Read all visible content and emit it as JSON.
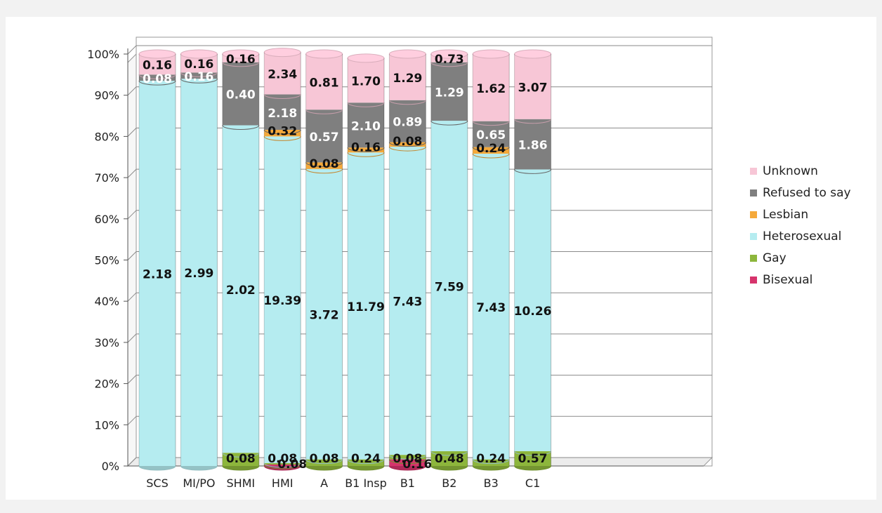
{
  "chart_data": {
    "type": "bar",
    "stacked": true,
    "title": "",
    "xlabel": "",
    "ylabel": "",
    "ylim": [
      0,
      100
    ],
    "y_ticks": [
      "0%",
      "10%",
      "20%",
      "30%",
      "40%",
      "50%",
      "60%",
      "70%",
      "80%",
      "90%",
      "100%"
    ],
    "categories": [
      "SCS",
      "MI/PO",
      "SHMI",
      "HMI",
      "A",
      "B1 Insp",
      "B1",
      "B2",
      "B3",
      "C1"
    ],
    "series": [
      {
        "name": "Bisexual",
        "color": "#d6336c",
        "percent": [
          0,
          0,
          0,
          0.35,
          0,
          0,
          1.6,
          0,
          0,
          0
        ],
        "labels": [
          "",
          "",
          "",
          "0.08",
          "",
          "",
          "0.16",
          "",
          "",
          ""
        ]
      },
      {
        "name": "Gay",
        "color": "#8db63c",
        "percent": [
          0,
          0,
          3.2,
          0.35,
          1.6,
          1.6,
          1.1,
          3.6,
          1.6,
          3.6
        ],
        "labels": [
          "",
          "",
          "0.08",
          "0.08",
          "0.08",
          "0.24",
          "0.08",
          "0.48",
          "0.24",
          "0.57"
        ]
      },
      {
        "name": "Heterosexual",
        "color": "#b5ecf0",
        "percent": [
          93.5,
          94,
          79.5,
          79.3,
          70.5,
          74.5,
          74.8,
          80.2,
          74.2,
          68.4
        ],
        "labels": [
          "2.18",
          "2.99",
          "2.02",
          "19.39",
          "3.72",
          "11.79",
          "7.43",
          "7.59",
          "7.43",
          "10.26"
        ]
      },
      {
        "name": "Lesbian",
        "color": "#f5a93a",
        "percent": [
          0,
          0,
          0,
          1.6,
          1.6,
          1.2,
          1.1,
          0,
          1.6,
          0
        ],
        "labels": [
          "",
          "",
          "",
          "0.32",
          "0.08",
          "0.16",
          "0.08",
          "",
          "0.24",
          ""
        ]
      },
      {
        "name": "Refused to say",
        "color": "#7f7f7f",
        "percent": [
          1.5,
          1.5,
          15.3,
          8.6,
          12.8,
          10.9,
          10.2,
          14.2,
          6.3,
          12.2
        ],
        "labels": [
          "0.08",
          "0.16",
          "0.40",
          "2.18",
          "0.57",
          "2.10",
          "0.89",
          "1.29",
          "0.65",
          "1.86"
        ]
      },
      {
        "name": "Unknown",
        "color": "#f7c6d6",
        "percent": [
          5,
          4.5,
          2.0,
          10.2,
          13.5,
          10.8,
          11.2,
          2.0,
          16.3,
          15.8
        ],
        "labels": [
          "0.16",
          "0.16",
          "0.16",
          "2.34",
          "0.81",
          "1.70",
          "1.29",
          "0.73",
          "1.62",
          "3.07"
        ]
      }
    ],
    "legend_order": [
      "Unknown",
      "Refused to say",
      "Lesbian",
      "Heterosexual",
      "Gay",
      "Bisexual"
    ],
    "legend_position": "right",
    "grid": true
  }
}
